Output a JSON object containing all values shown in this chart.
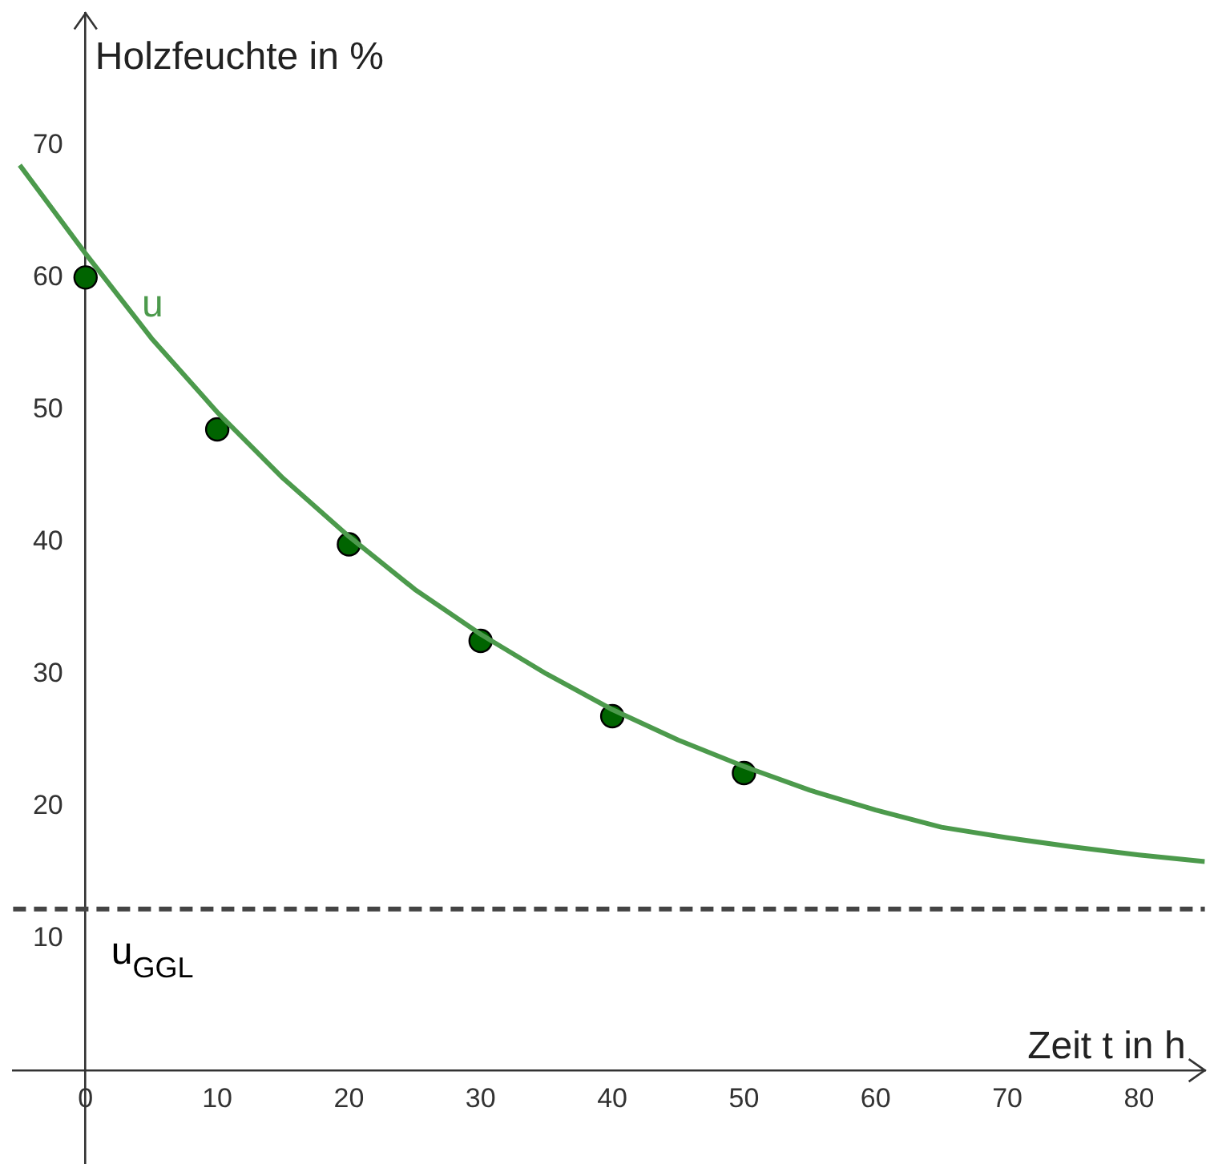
{
  "chart_data": {
    "type": "line",
    "xlabel": "Zeit t in h",
    "ylabel": "Holzfeuchte in %",
    "xlim": [
      -5.5,
      85
    ],
    "ylim": [
      -7,
      80
    ],
    "xticks": [
      0,
      10,
      20,
      30,
      40,
      50,
      60,
      70,
      80
    ],
    "yticks": [
      10,
      20,
      30,
      40,
      50,
      60,
      70
    ],
    "grid": false,
    "legend": false,
    "series": [
      {
        "name": "u",
        "type": "line",
        "color": "#4c9a4c",
        "marker": "none",
        "line_style": "solid",
        "x": [
          -5,
          0,
          5,
          10,
          15,
          20,
          25,
          30,
          35,
          40,
          45,
          50,
          55,
          60,
          65,
          70,
          75,
          80,
          85
        ],
        "values": [
          68.5,
          61.8,
          55.4,
          49.8,
          44.8,
          40.4,
          36.4,
          33.0,
          30.0,
          27.3,
          25.0,
          23.0,
          21.2,
          19.7,
          18.4,
          17.6,
          16.9,
          16.3,
          15.8
        ]
      },
      {
        "type": "scatter",
        "color": "#006400",
        "marker": "circle",
        "x": [
          0,
          10,
          20,
          30,
          40,
          50
        ],
        "values": [
          60,
          48.5,
          39.8,
          32.5,
          26.8,
          22.5
        ]
      }
    ],
    "ref_lines": [
      {
        "axis": "y",
        "value": 12.2,
        "label": "u$_{GGL}$",
        "color": "#444444",
        "line_style": "dashed"
      }
    ]
  }
}
